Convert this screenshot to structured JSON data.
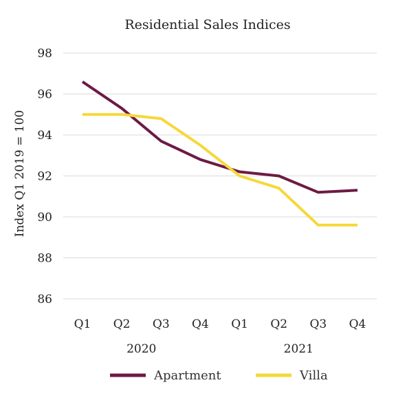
{
  "chart_data": {
    "type": "line",
    "title": "Residential Sales Indices",
    "ylabel": "Index Q1 2019 = 100",
    "xlabel": "",
    "categories": [
      "Q1",
      "Q2",
      "Q3",
      "Q4",
      "Q1",
      "Q2",
      "Q3",
      "Q4"
    ],
    "year_groups": [
      {
        "label": "2020",
        "categories": [
          "Q1",
          "Q2",
          "Q3",
          "Q4"
        ]
      },
      {
        "label": "2021",
        "categories": [
          "Q1",
          "Q2",
          "Q3",
          "Q4"
        ]
      }
    ],
    "ylim": [
      86,
      98
    ],
    "yticks": [
      86,
      88,
      90,
      92,
      94,
      96,
      98
    ],
    "grid": true,
    "legend_position": "bottom",
    "series": [
      {
        "name": "Apartment",
        "color": "#6d1a43",
        "values": [
          96.6,
          95.3,
          93.7,
          92.8,
          92.2,
          92.0,
          91.2,
          91.3
        ]
      },
      {
        "name": "Villa",
        "color": "#f5d83a",
        "values": [
          95.0,
          95.0,
          94.8,
          93.5,
          92.0,
          91.4,
          89.6,
          89.6
        ]
      }
    ]
  }
}
